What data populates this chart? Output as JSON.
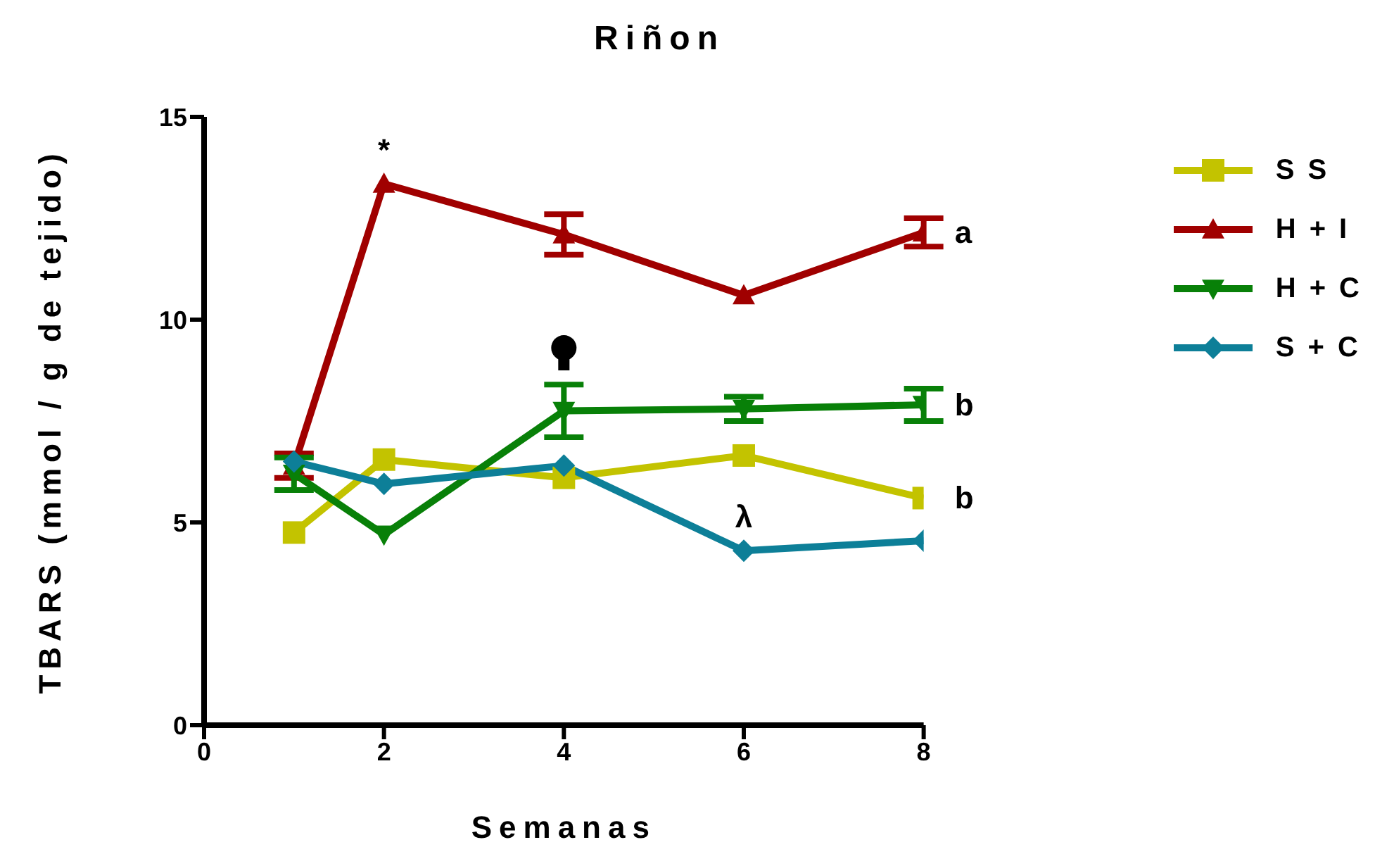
{
  "chart_data": {
    "type": "line",
    "title": "Riñon",
    "xlabel": "Semanas",
    "ylabel": "TBARS (mmol / g de tejido)",
    "xlim": [
      0,
      8
    ],
    "xticks": [
      0,
      2,
      4,
      6,
      8
    ],
    "ylim": [
      0,
      15
    ],
    "yticks": [
      0,
      5,
      10,
      15
    ],
    "grid": false,
    "legend": "top right",
    "line_style": "solid",
    "series": [
      {
        "name": "S S",
        "color": "#c3c300",
        "marker": "square",
        "x": [
          1,
          2,
          4,
          6,
          8
        ],
        "values": [
          4.75,
          6.55,
          6.1,
          6.65,
          5.6
        ]
      },
      {
        "name": "H + I",
        "color": "#a00000",
        "marker": "triangle",
        "x": [
          1,
          2,
          4,
          6,
          8
        ],
        "values": [
          6.4,
          13.35,
          12.1,
          10.6,
          12.15
        ],
        "errors": [
          0.3,
          null,
          0.5,
          null,
          0.35
        ]
      },
      {
        "name": "H + C",
        "color": "#088008",
        "marker": "triangle-down",
        "x": [
          1,
          2,
          4,
          6,
          8
        ],
        "values": [
          6.2,
          4.7,
          7.75,
          7.8,
          7.9
        ],
        "errors": [
          0.4,
          null,
          0.65,
          0.3,
          0.4
        ]
      },
      {
        "name": "S + C",
        "color": "#0d7f98",
        "marker": "diamond",
        "x": [
          1,
          2,
          4,
          6,
          8
        ],
        "values": [
          6.5,
          5.95,
          6.4,
          4.3,
          4.55
        ]
      }
    ],
    "annotations": [
      {
        "text": "*",
        "x": 2,
        "y": 13.35
      },
      {
        "text": "a",
        "x": 8,
        "y": 12.15
      },
      {
        "text": "b",
        "x": 8,
        "y": 7.9
      },
      {
        "text": "b",
        "x": 8,
        "y": 5.6
      },
      {
        "text": "λ",
        "x": 6,
        "y": 4.3
      }
    ]
  }
}
